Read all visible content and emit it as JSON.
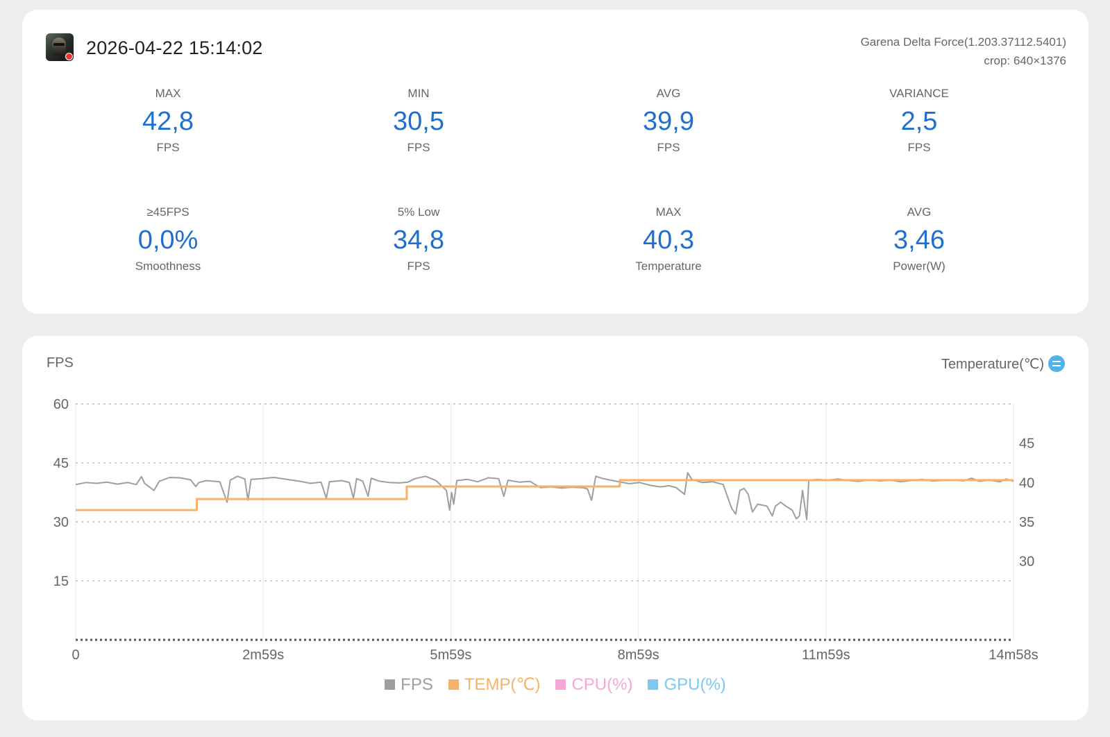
{
  "header": {
    "datetime": "2026-04-22 15:14:02",
    "app_name": "Garena Delta Force(1.203.37112.5401)",
    "crop": "crop: 640×1376"
  },
  "stats": [
    {
      "label": "MAX",
      "value": "42,8",
      "unit": "FPS"
    },
    {
      "label": "MIN",
      "value": "30,5",
      "unit": "FPS"
    },
    {
      "label": "AVG",
      "value": "39,9",
      "unit": "FPS"
    },
    {
      "label": "VARIANCE",
      "value": "2,5",
      "unit": "FPS"
    },
    {
      "label": "≥45FPS",
      "value": "0,0%",
      "unit": "Smoothness"
    },
    {
      "label": "5% Low",
      "value": "34,8",
      "unit": "FPS"
    },
    {
      "label": "MAX",
      "value": "40,3",
      "unit": "Temperature"
    },
    {
      "label": "AVG",
      "value": "3,46",
      "unit": "Power(W)"
    }
  ],
  "chart": {
    "left_title": "FPS",
    "right_title": "Temperature(℃)",
    "swap_icon": "swap-axis-icon"
  },
  "legend": [
    {
      "label": "FPS",
      "color": "#9e9e9e"
    },
    {
      "label": "TEMP(℃)",
      "color": "#f5b26b"
    },
    {
      "label": "CPU(%)",
      "color": "#f5a8d4"
    },
    {
      "label": "GPU(%)",
      "color": "#7cc8f2"
    }
  ],
  "chart_data": {
    "type": "line",
    "x_tick_labels": [
      "0",
      "2m59s",
      "5m59s",
      "8m59s",
      "11m59s",
      "14m58s"
    ],
    "x_range_seconds": [
      0,
      898
    ],
    "y_left": {
      "label": "FPS",
      "ticks": [
        "60",
        "45",
        "30",
        "15"
      ],
      "range": [
        0,
        60
      ]
    },
    "y_right": {
      "label": "Temperature(℃)",
      "ticks": [
        "45",
        "40",
        "35",
        "30"
      ],
      "range": [
        20,
        50
      ]
    },
    "grid": true,
    "legend_position": "bottom-center",
    "series": [
      {
        "name": "FPS",
        "axis": "left",
        "color": "#9e9e9e",
        "points": [
          [
            0,
            39.5
          ],
          [
            10,
            40.0
          ],
          [
            20,
            39.8
          ],
          [
            30,
            40.1
          ],
          [
            40,
            39.6
          ],
          [
            50,
            40.0
          ],
          [
            58,
            39.5
          ],
          [
            63,
            41.5
          ],
          [
            66,
            39.8
          ],
          [
            75,
            38.0
          ],
          [
            80,
            40.3
          ],
          [
            90,
            41.3
          ],
          [
            100,
            41.2
          ],
          [
            110,
            40.7
          ],
          [
            115,
            39.0
          ],
          [
            118,
            40.0
          ],
          [
            125,
            40.5
          ],
          [
            138,
            40.2
          ],
          [
            145,
            35.0
          ],
          [
            148,
            40.6
          ],
          [
            155,
            41.6
          ],
          [
            162,
            40.9
          ],
          [
            165,
            35.5
          ],
          [
            168,
            40.8
          ],
          [
            178,
            41.0
          ],
          [
            190,
            41.3
          ],
          [
            200,
            40.9
          ],
          [
            215,
            40.3
          ],
          [
            225,
            39.8
          ],
          [
            235,
            40.1
          ],
          [
            240,
            36.0
          ],
          [
            243,
            40.2
          ],
          [
            255,
            40.5
          ],
          [
            262,
            40.0
          ],
          [
            266,
            36.0
          ],
          [
            269,
            41.0
          ],
          [
            275,
            40.3
          ],
          [
            280,
            36.5
          ],
          [
            283,
            41.1
          ],
          [
            290,
            40.4
          ],
          [
            300,
            40.0
          ],
          [
            310,
            39.9
          ],
          [
            318,
            40.1
          ],
          [
            325,
            41.0
          ],
          [
            335,
            41.6
          ],
          [
            345,
            40.5
          ],
          [
            355,
            38.0
          ],
          [
            358,
            33.0
          ],
          [
            360,
            37.5
          ],
          [
            362,
            34.5
          ],
          [
            365,
            40.5
          ],
          [
            375,
            40.8
          ],
          [
            385,
            40.2
          ],
          [
            395,
            41.2
          ],
          [
            405,
            41.0
          ],
          [
            410,
            36.5
          ],
          [
            414,
            40.6
          ],
          [
            425,
            40.1
          ],
          [
            435,
            40.3
          ],
          [
            445,
            38.7
          ],
          [
            455,
            38.9
          ],
          [
            465,
            38.6
          ],
          [
            475,
            38.8
          ],
          [
            485,
            38.7
          ],
          [
            490,
            38.4
          ],
          [
            494,
            35.5
          ],
          [
            498,
            41.6
          ],
          [
            505,
            41.0
          ],
          [
            520,
            40.2
          ],
          [
            530,
            39.7
          ],
          [
            540,
            40.0
          ],
          [
            550,
            39.3
          ],
          [
            560,
            38.9
          ],
          [
            568,
            39.2
          ],
          [
            575,
            38.7
          ],
          [
            583,
            37.0
          ],
          [
            586,
            42.5
          ],
          [
            590,
            40.8
          ],
          [
            600,
            40.0
          ],
          [
            610,
            40.2
          ],
          [
            620,
            39.5
          ],
          [
            628,
            33.5
          ],
          [
            632,
            32.0
          ],
          [
            636,
            38.0
          ],
          [
            640,
            38.5
          ],
          [
            644,
            37.0
          ],
          [
            648,
            32.5
          ],
          [
            653,
            34.5
          ],
          [
            662,
            34.0
          ],
          [
            667,
            31.5
          ],
          [
            670,
            34.0
          ],
          [
            675,
            35.0
          ],
          [
            680,
            34.0
          ],
          [
            686,
            33.0
          ],
          [
            690,
            30.8
          ],
          [
            693,
            31.5
          ],
          [
            696,
            38.0
          ],
          [
            700,
            30.6
          ],
          [
            702,
            40.5
          ],
          [
            710,
            40.8
          ],
          [
            720,
            40.6
          ],
          [
            730,
            40.9
          ],
          [
            740,
            40.5
          ],
          [
            750,
            40.3
          ],
          [
            760,
            40.7
          ],
          [
            770,
            40.4
          ],
          [
            780,
            40.6
          ],
          [
            790,
            40.2
          ],
          [
            800,
            40.5
          ],
          [
            810,
            40.8
          ],
          [
            820,
            40.4
          ],
          [
            830,
            40.5
          ],
          [
            840,
            40.7
          ],
          [
            850,
            40.4
          ],
          [
            858,
            41.1
          ],
          [
            865,
            40.3
          ],
          [
            875,
            40.6
          ],
          [
            885,
            40.2
          ],
          [
            891,
            40.9
          ],
          [
            898,
            40.3
          ]
        ]
      },
      {
        "name": "TEMP(℃)",
        "axis": "right",
        "color": "#f5b26b",
        "points": [
          [
            0,
            36.5
          ],
          [
            116,
            36.5
          ],
          [
            116,
            37.9
          ],
          [
            317,
            37.9
          ],
          [
            317,
            39.5
          ],
          [
            521,
            39.5
          ],
          [
            521,
            40.3
          ],
          [
            749,
            40.3
          ],
          [
            749,
            40.3
          ],
          [
            898,
            40.3
          ]
        ]
      }
    ]
  }
}
